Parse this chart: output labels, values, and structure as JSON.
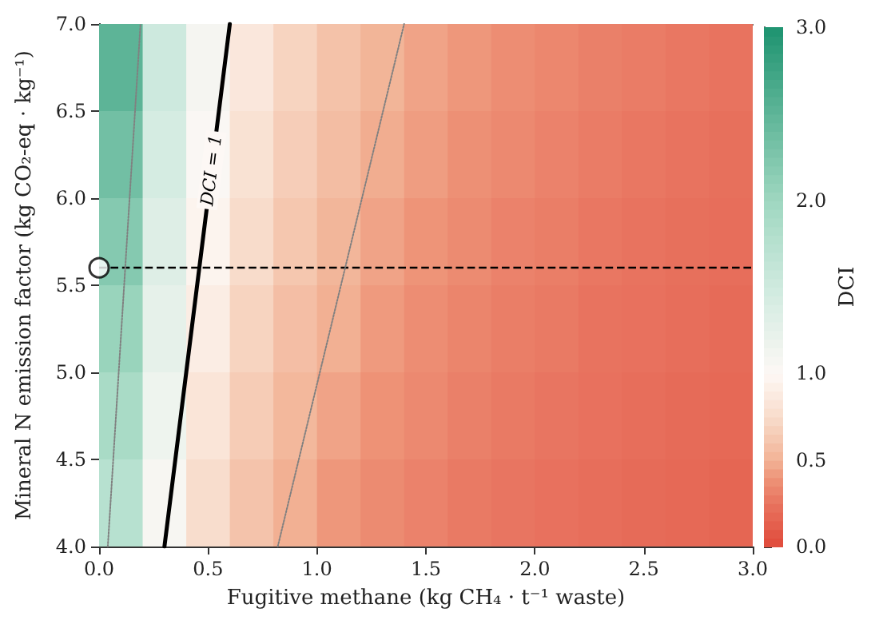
{
  "chart_data": {
    "type": "heatmap",
    "xlabel": "Fugitive methane (kg CH₄ · t⁻¹ waste)",
    "ylabel": "Mineral N emission factor (kg CO₂-eq · kg⁻¹)",
    "clabel": "DCI",
    "x": [
      0.1,
      0.3,
      0.5,
      0.7,
      0.9,
      1.1,
      1.3,
      1.5,
      1.7,
      1.9,
      2.1,
      2.3,
      2.5,
      2.7,
      2.9
    ],
    "cells": [
      [
        2.51,
        1.52,
        1.09,
        0.85,
        0.7,
        0.59,
        0.51,
        0.45,
        0.41,
        0.37,
        0.34,
        0.31,
        0.29,
        0.27,
        0.25
      ],
      [
        2.35,
        1.43,
        1.03,
        0.8,
        0.66,
        0.56,
        0.48,
        0.43,
        0.38,
        0.35,
        0.32,
        0.29,
        0.27,
        0.25,
        0.23
      ],
      [
        2.2,
        1.34,
        0.96,
        0.75,
        0.62,
        0.52,
        0.45,
        0.4,
        0.36,
        0.32,
        0.3,
        0.27,
        0.25,
        0.23,
        0.22
      ],
      [
        2.05,
        1.25,
        0.9,
        0.7,
        0.57,
        0.49,
        0.42,
        0.37,
        0.33,
        0.3,
        0.28,
        0.25,
        0.24,
        0.22,
        0.2
      ],
      [
        1.9,
        1.16,
        0.83,
        0.65,
        0.53,
        0.45,
        0.39,
        0.35,
        0.31,
        0.28,
        0.26,
        0.24,
        0.22,
        0.2,
        0.19
      ],
      [
        1.75,
        1.06,
        0.76,
        0.6,
        0.49,
        0.41,
        0.36,
        0.32,
        0.28,
        0.26,
        0.24,
        0.22,
        0.2,
        0.19,
        0.17
      ]
    ],
    "clim": [
      0,
      3
    ],
    "cticks": [
      {
        "value": 0,
        "label": "0.0"
      },
      {
        "value": 0.5,
        "label": "0.5"
      },
      {
        "value": 1,
        "label": "1.0"
      },
      {
        "value": 2,
        "label": "2.0"
      },
      {
        "value": 3,
        "label": "3.0"
      }
    ],
    "xlim": [
      0,
      3
    ],
    "xticks": [
      {
        "value": 0,
        "label": "0.0"
      },
      {
        "value": 0.5,
        "label": "0.5"
      },
      {
        "value": 1,
        "label": "1.0"
      },
      {
        "value": 1.5,
        "label": "1.5"
      },
      {
        "value": 2,
        "label": "2.0"
      },
      {
        "value": 2.5,
        "label": "2.5"
      },
      {
        "value": 3,
        "label": "3.0"
      }
    ],
    "ylim": [
      4,
      7
    ],
    "yticks": [
      {
        "value": 4,
        "label": "4.0"
      },
      {
        "value": 4.5,
        "label": "4.5"
      },
      {
        "value": 5,
        "label": "5.0"
      },
      {
        "value": 5.5,
        "label": "5.5"
      },
      {
        "value": 6,
        "label": "6.0"
      },
      {
        "value": 6.5,
        "label": "6.5"
      },
      {
        "value": 7,
        "label": "7.0"
      }
    ],
    "series": [
      {
        "type": "line",
        "name": "DCI = 1",
        "color": "#000000",
        "line_style": "solid",
        "x": [
          0.3,
          0.6
        ],
        "values": [
          4,
          7
        ]
      },
      {
        "type": "line",
        "color": "#808080",
        "line_style": "dotted",
        "x": [
          0.04,
          0.19
        ],
        "values": [
          4,
          7
        ]
      },
      {
        "type": "line",
        "color": "#808080",
        "line_style": "dotted",
        "x": [
          0.82,
          1.4
        ],
        "values": [
          4,
          7
        ]
      },
      {
        "type": "scatter",
        "color": "#ffffff",
        "marker": "circle",
        "x": [
          0
        ],
        "values": [
          5.6
        ]
      }
    ],
    "ref_lines": [
      {
        "axis": "y",
        "value": 5.6,
        "color": "#000000",
        "line_style": "dashed"
      }
    ],
    "grid": false,
    "legend": false
  }
}
